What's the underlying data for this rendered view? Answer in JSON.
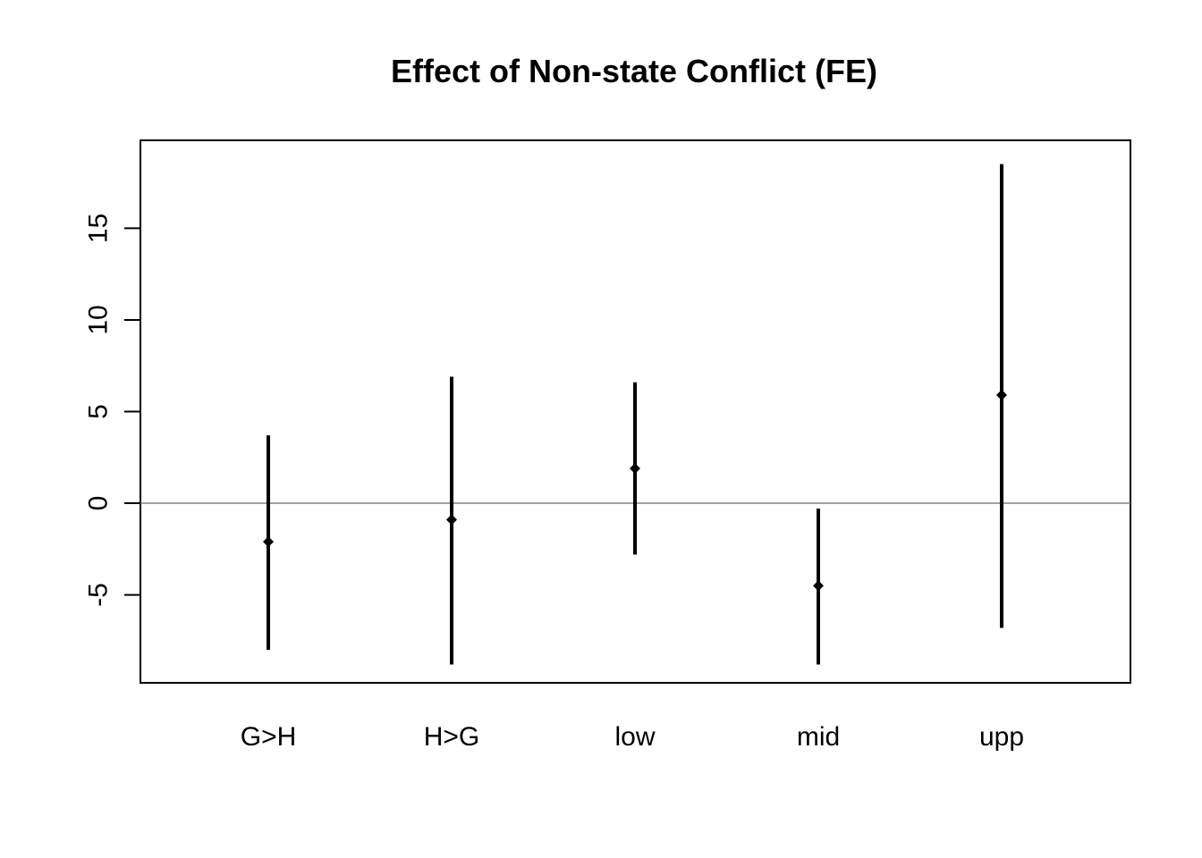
{
  "chart_data": {
    "type": "scatter",
    "title": "Effect of Non-state Conflict (FE)",
    "xlabel": "",
    "ylabel": "",
    "categories": [
      "G>H",
      "H>G",
      "low",
      "mid",
      "upp"
    ],
    "estimates": [
      -2.1,
      -0.9,
      1.9,
      -4.5,
      5.9
    ],
    "lower": [
      -8.0,
      -8.8,
      -2.8,
      -8.8,
      -6.8
    ],
    "upper": [
      3.7,
      6.9,
      6.6,
      -0.3,
      18.5
    ],
    "yticks": [
      -5,
      0,
      5,
      10,
      15
    ],
    "ylim": [
      -9.8,
      19.8
    ],
    "reference_line": 0,
    "grid": false
  }
}
